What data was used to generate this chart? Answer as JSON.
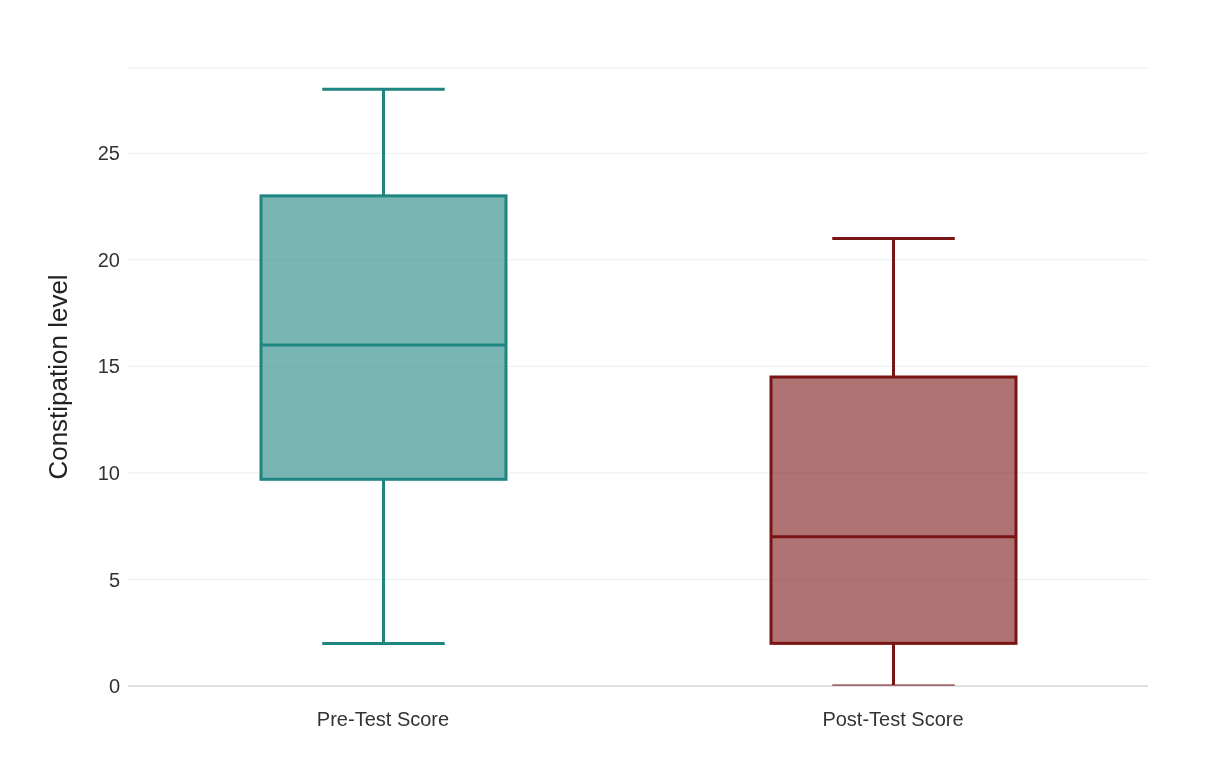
{
  "chart_data": {
    "type": "box",
    "ylabel": "Constipation level",
    "categories": [
      "Pre-Test Score",
      "Post-Test Score"
    ],
    "colors": [
      "#1f8580",
      "#7a1515"
    ],
    "boxes": [
      {
        "low": 2,
        "q1": 9.7,
        "median": 16,
        "q3": 23,
        "high": 28
      },
      {
        "low": 0,
        "q1": 2,
        "median": 7,
        "q3": 14.5,
        "high": 21
      }
    ],
    "ylim": [
      0,
      29
    ],
    "yticks": [
      0,
      5,
      10,
      15,
      20,
      25
    ],
    "grid": "y"
  }
}
